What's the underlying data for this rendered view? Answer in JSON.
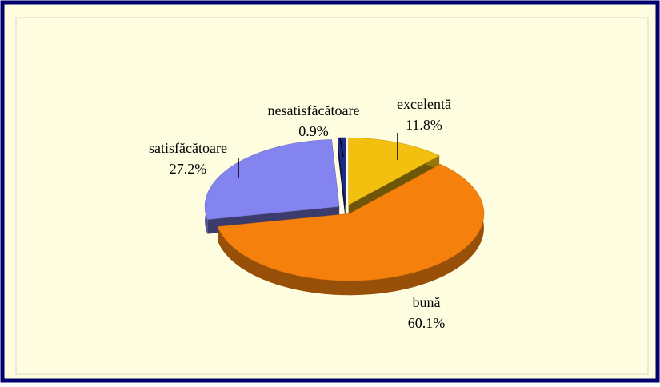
{
  "chart_data": {
    "type": "pie",
    "categories": [
      "excelentă",
      "bună",
      "satisfăcătoare",
      "nesatisfăcătoare"
    ],
    "values": [
      11.8,
      60.1,
      27.2,
      0.9
    ],
    "value_labels": [
      "11.8%",
      "60.1%",
      "27.2%",
      "0.9%"
    ],
    "colors": [
      "#f4c010",
      "#f5800c",
      "#8484f0",
      "#1c2a8c"
    ]
  }
}
